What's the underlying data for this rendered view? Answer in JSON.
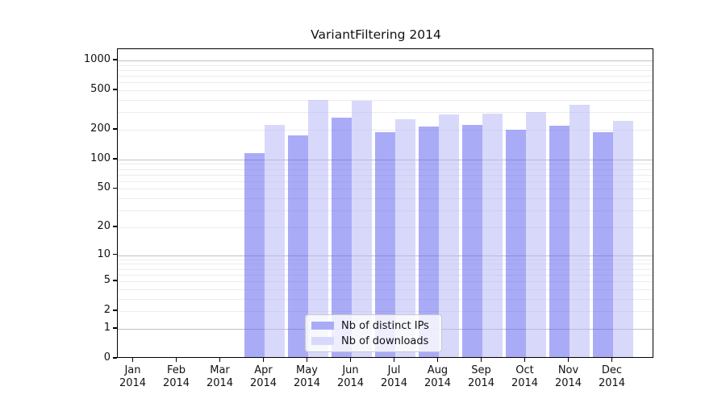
{
  "title": "VariantFiltering 2014",
  "chart_data": {
    "type": "bar",
    "title": "VariantFiltering 2014",
    "scale": "log1p",
    "grid": true,
    "legend_position": "lower center",
    "categories": [
      "Jan",
      "Feb",
      "Mar",
      "Apr",
      "May",
      "Jun",
      "Jul",
      "Aug",
      "Sep",
      "Oct",
      "Nov",
      "Dec"
    ],
    "year_label": "2014",
    "y_ticks": [
      0,
      1,
      2,
      5,
      10,
      20,
      50,
      100,
      200,
      500,
      1000
    ],
    "y_minor_gridlines": [
      2,
      3,
      4,
      5,
      6,
      7,
      8,
      9,
      20,
      30,
      40,
      50,
      60,
      70,
      80,
      90,
      200,
      300,
      400,
      500,
      600,
      700,
      800,
      900
    ],
    "y_major_gridlines": [
      1,
      10,
      100,
      1000
    ],
    "ylim": [
      0,
      1200
    ],
    "series": [
      {
        "name": "Nb of distinct IPs",
        "legend_color": "#aaabf7",
        "fill": "rgba(85,87,239,0.5)",
        "values": [
          0,
          0,
          0,
          115,
          175,
          265,
          190,
          215,
          225,
          200,
          220,
          190
        ]
      },
      {
        "name": "Nb of downloads",
        "legend_color": "#d8d9fa",
        "fill": "rgba(177,179,245,0.5)",
        "values": [
          0,
          0,
          0,
          225,
          400,
          395,
          255,
          285,
          290,
          305,
          355,
          245
        ]
      }
    ],
    "colors": {
      "grid_major": "#c2c2c2",
      "grid_minor": "#ececec",
      "axis": "#000000"
    }
  }
}
